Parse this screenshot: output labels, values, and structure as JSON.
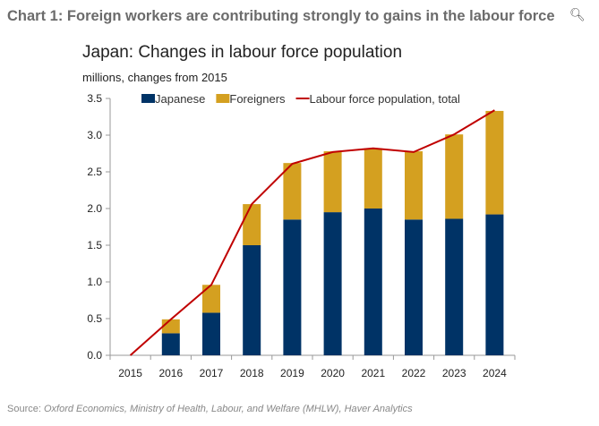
{
  "title": "Chart 1: Foreign workers are contributing strongly to gains in the labour force",
  "zoom_icon": "zoom-in-icon",
  "source_label": "Source: ",
  "source_text": "Oxford Economics, Ministry of Health, Labour, and Welfare (MHLW), Haver Analytics",
  "chart_data": {
    "type": "bar",
    "title": "Japan: Changes in labour force population",
    "ylabel": "millions, changes from 2015",
    "categories": [
      "2015",
      "2016",
      "2017",
      "2018",
      "2019",
      "2020",
      "2021",
      "2022",
      "2023",
      "2024"
    ],
    "ylim": [
      0,
      3.5
    ],
    "yticks": [
      "0.0",
      "0.5",
      "1.0",
      "1.5",
      "2.0",
      "2.5",
      "3.0",
      "3.5"
    ],
    "legend_position": "top",
    "series": [
      {
        "name": "Japanese",
        "kind": "stacked-bar",
        "color": "#003366",
        "values": [
          0,
          0.3,
          0.58,
          1.5,
          1.85,
          1.95,
          2.0,
          1.85,
          1.86,
          1.92
        ]
      },
      {
        "name": "Foreigners",
        "kind": "stacked-bar",
        "color": "#d4a020",
        "values": [
          0,
          0.19,
          0.38,
          0.56,
          0.77,
          0.83,
          0.82,
          0.93,
          1.15,
          1.41
        ]
      },
      {
        "name": "Labour force population, total",
        "kind": "line",
        "color": "#c00000",
        "values": [
          0,
          0.49,
          0.96,
          2.06,
          2.61,
          2.77,
          2.82,
          2.77,
          3.01,
          3.34
        ]
      }
    ]
  }
}
